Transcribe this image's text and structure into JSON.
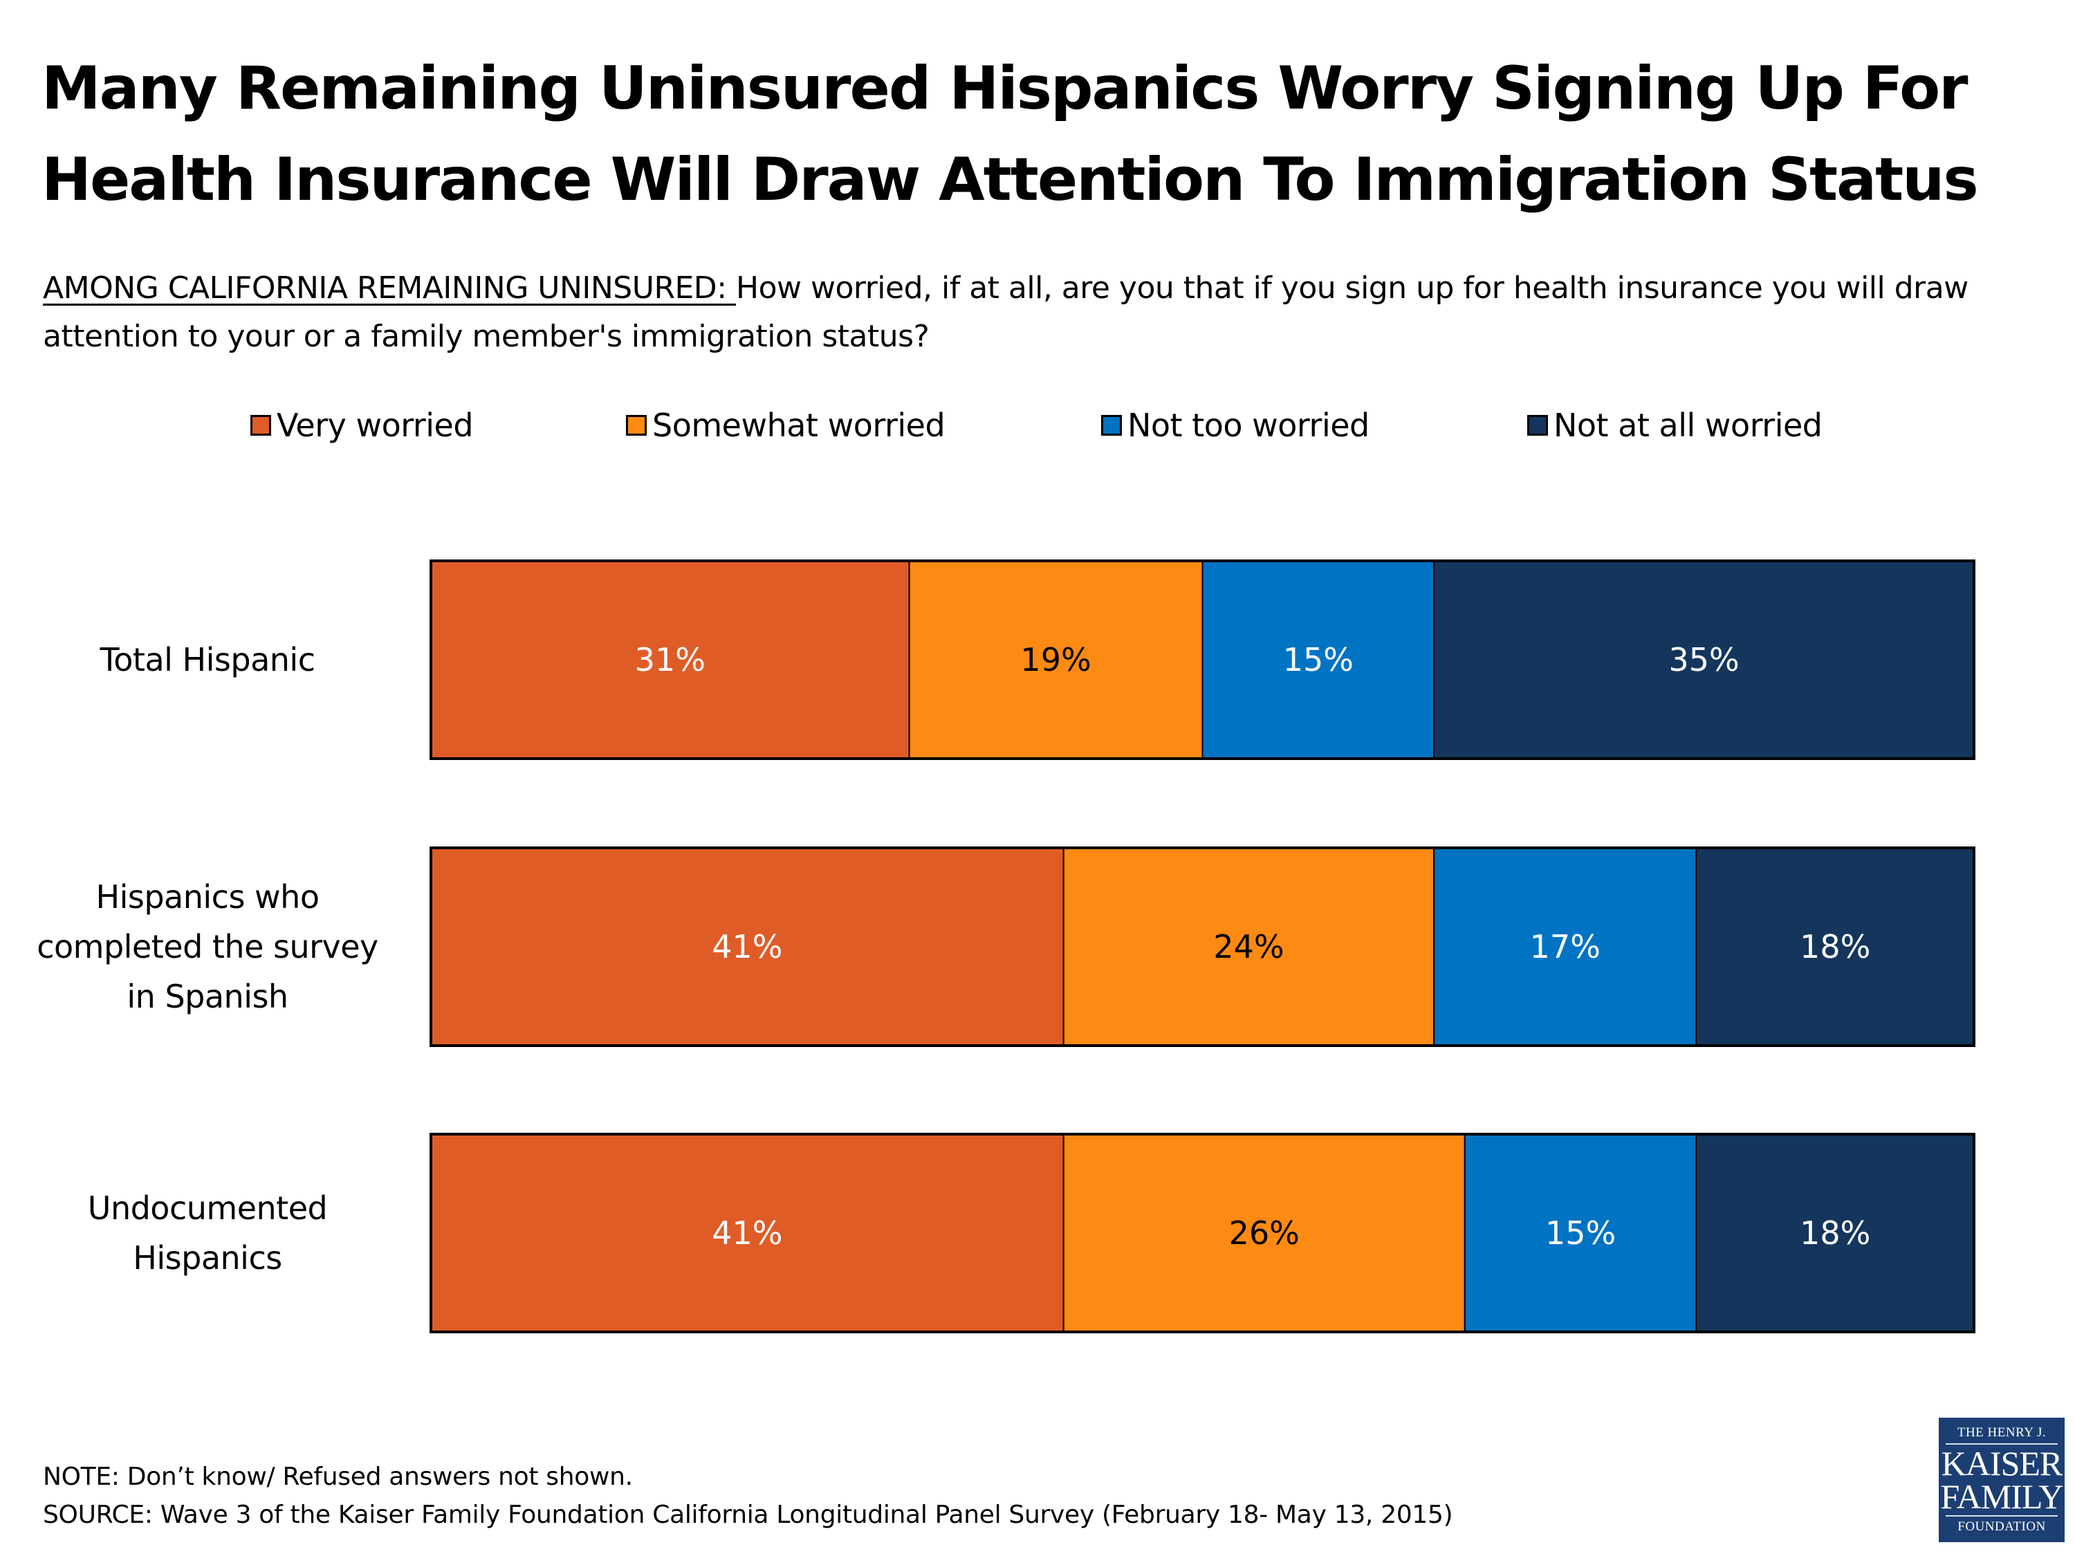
{
  "header": {
    "title_line1": "Many Remaining Uninsured Hispanics Worry Signing Up For",
    "title_line2": "Health Insurance Will Draw Attention To Immigration Status",
    "question_lead": "AMONG CALIFORNIA REMAINING UNINSURED: ",
    "question_text": "How worried, if at all, are you that if you sign up for health insurance you will draw attention to your or a family member's immigration status?"
  },
  "chart_data": {
    "type": "bar",
    "orientation": "horizontal",
    "stacked": true,
    "title": "Many Remaining Uninsured Hispanics Worry Signing Up For Health Insurance Will Draw Attention To Immigration Status",
    "xlabel": "",
    "ylabel": "",
    "xlim": [
      0,
      100
    ],
    "grid": false,
    "legend_position": "top",
    "categories": [
      "Total Hispanic",
      "Hispanics who completed the survey in Spanish",
      "Undocumented Hispanics"
    ],
    "category_lines": [
      [
        "Total Hispanic"
      ],
      [
        "Hispanics who",
        "completed the survey",
        "in Spanish"
      ],
      [
        "Undocumented",
        "Hispanics"
      ]
    ],
    "series": [
      {
        "name": "Very worried",
        "color": "#e05c27",
        "label_color": "#ffffff",
        "values": [
          31,
          41,
          41
        ]
      },
      {
        "name": "Somewhat worried",
        "color": "#fd8a12",
        "label_color": "#000000",
        "values": [
          19,
          24,
          26
        ]
      },
      {
        "name": "Not too worried",
        "color": "#0173c3",
        "label_color": "#ffffff",
        "values": [
          15,
          17,
          15
        ]
      },
      {
        "name": "Not at all worried",
        "color": "#14365c",
        "label_color": "#ffffff",
        "values": [
          35,
          18,
          18
        ]
      }
    ],
    "value_suffix": "%"
  },
  "footer": {
    "note": "NOTE: Don’t know/ Refused answers not shown.",
    "source": "SOURCE: Wave 3 of the Kaiser Family Foundation California Longitudinal Panel Survey (February 18- May 13, 2015)"
  },
  "logo": {
    "line1": "THE HENRY J.",
    "line2": "KAISER",
    "line3": "FAMILY",
    "line4": "FOUNDATION"
  }
}
